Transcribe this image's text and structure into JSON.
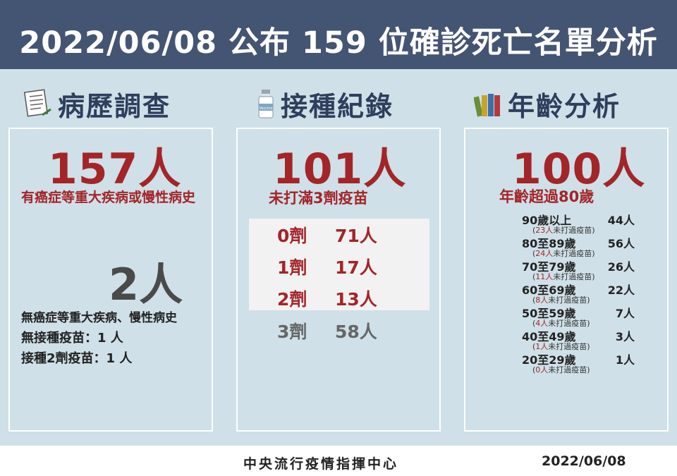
{
  "header": {
    "title": "2022/06/08 公布 159 位確診死亡名單分析"
  },
  "section1": {
    "title": "病歷調查",
    "big_number": "157人",
    "big_caption": "有癌症等重大疾病或慢性病史",
    "second_number": "2人",
    "second_caption": "無癌症等重大疾病、慢性病史",
    "line1": "無接種疫苗：1 人",
    "line2": "接種2劑疫苗：1 人"
  },
  "section2": {
    "title": "接種紀錄",
    "vial_label": "Vaccine",
    "big_number": "101人",
    "big_caption": "未打滿3劑疫苗",
    "doses": [
      {
        "dose": "0劑",
        "count": "71人"
      },
      {
        "dose": "1劑",
        "count": "17人"
      },
      {
        "dose": "2劑",
        "count": "13人"
      },
      {
        "dose": "3劑",
        "count": "58人"
      }
    ]
  },
  "section3": {
    "title": "年齡分析",
    "big_number": "100人",
    "big_caption": "年齡超過80歲",
    "note_suffix": "未打過疫苗",
    "ages": [
      {
        "label": "90歲以上",
        "count": "44人",
        "unvaccinated": "23人"
      },
      {
        "label": "80至89歲",
        "count": "56人",
        "unvaccinated": "24人"
      },
      {
        "label": "70至79歲",
        "count": "26人",
        "unvaccinated": "11人"
      },
      {
        "label": "60至69歲",
        "count": "22人",
        "unvaccinated": "8人"
      },
      {
        "label": "50至59歲",
        "count": "7人",
        "unvaccinated": "4人"
      },
      {
        "label": "40至49歲",
        "count": "3人",
        "unvaccinated": "1人"
      },
      {
        "label": "20至29歲",
        "count": "1人",
        "unvaccinated": "0人"
      }
    ]
  },
  "footer": {
    "org": "中央流行疫情指揮中心",
    "date": "2022/06/08"
  },
  "colors": {
    "header_bg": "#445473",
    "page_bg": "#cfe0e8",
    "accent_red": "#a32528",
    "title_navy": "#2e3e5c"
  }
}
